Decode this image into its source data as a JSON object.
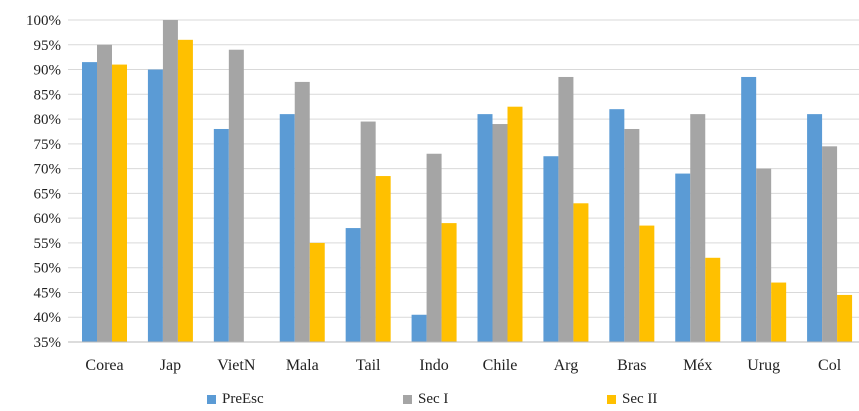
{
  "chart_data": {
    "type": "bar",
    "categories": [
      "Corea",
      "Jap",
      "VietN",
      "Mala",
      "Tail",
      "Indo",
      "Chile",
      "Arg",
      "Bras",
      "Méx",
      "Urug",
      "Col"
    ],
    "series": [
      {
        "name": "PreEsc",
        "color": "#5b9bd5",
        "values": [
          91.5,
          90,
          78,
          81,
          58,
          40.5,
          81,
          72.5,
          82,
          69,
          88.5,
          81
        ]
      },
      {
        "name": "Sec I",
        "color": "#a5a5a5",
        "values": [
          95,
          100,
          94,
          87.5,
          79.5,
          73,
          79,
          88.5,
          78,
          81,
          70,
          74.5
        ]
      },
      {
        "name": "Sec II",
        "color": "#ffc000",
        "values": [
          91,
          96,
          35,
          55,
          68.5,
          59,
          82.5,
          63,
          58.5,
          52,
          47,
          44.5
        ]
      }
    ],
    "ylim": [
      35,
      100
    ],
    "yticks": [
      "35%",
      "40%",
      "45%",
      "50%",
      "55%",
      "60%",
      "65%",
      "70%",
      "75%",
      "80%",
      "85%",
      "90%",
      "95%",
      "100%"
    ],
    "grid": true,
    "legend_position": "bottom",
    "title": "",
    "xlabel": "",
    "ylabel": ""
  }
}
